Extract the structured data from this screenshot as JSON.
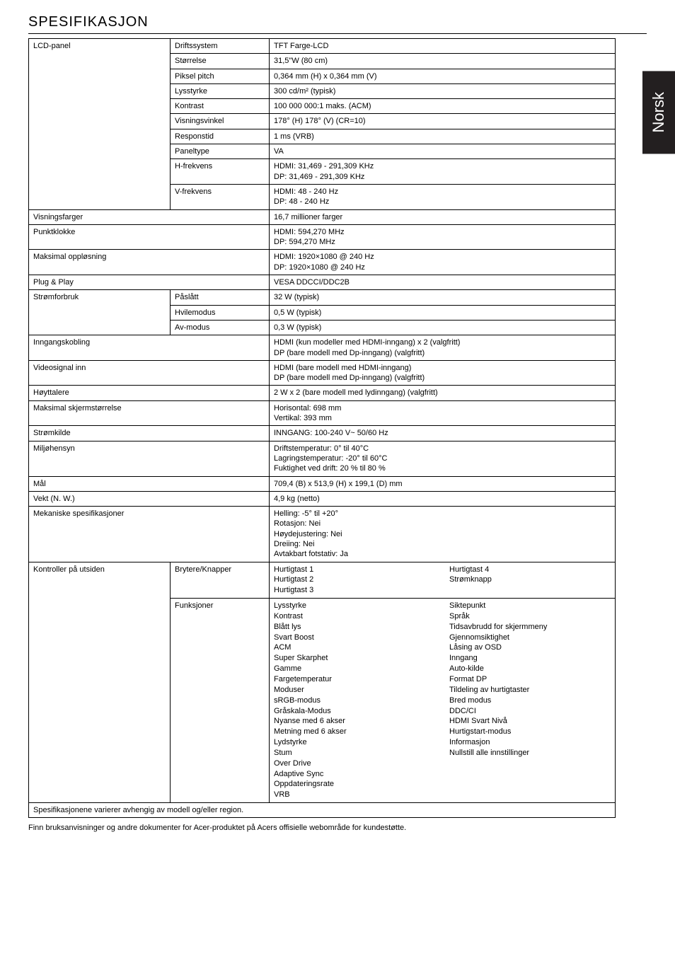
{
  "sideTab": "Norsk",
  "title": "SPESIFIKASJON",
  "rows": {
    "lcd": {
      "label": "LCD-panel",
      "drift": {
        "k": "Driftssystem",
        "v": "TFT Farge-LCD"
      },
      "size": {
        "k": "Størrelse",
        "v": "31,5\"W (80 cm)"
      },
      "pitch": {
        "k": "Piksel pitch",
        "v": "0,364 mm (H) x 0,364 mm (V)"
      },
      "lys": {
        "k": "Lysstyrke",
        "v": "300 cd/m² (typisk)"
      },
      "kontrast": {
        "k": "Kontrast",
        "v": "100 000 000:1 maks. (ACM)"
      },
      "vinkel": {
        "k": "Visningsvinkel",
        "v": "178° (H) 178° (V) (CR=10)"
      },
      "respons": {
        "k": "Responstid",
        "v": "1 ms (VRB)"
      },
      "paneltype": {
        "k": "Paneltype",
        "v": "VA"
      },
      "hfrek": {
        "k": "H-frekvens",
        "v": "HDMI: 31,469 - 291,309 KHz\nDP: 31,469 - 291,309 KHz"
      },
      "vfrek": {
        "k": "V-frekvens",
        "v": "HDMI: 48 - 240 Hz\nDP: 48 - 240 Hz"
      }
    },
    "visningsfarger": {
      "k": "Visningsfarger",
      "v": "16,7 millioner farger"
    },
    "punktklokke": {
      "k": "Punktklokke",
      "v": "HDMI: 594,270 MHz\nDP: 594,270 MHz"
    },
    "maksres": {
      "k": "Maksimal oppløsning",
      "v": "HDMI: 1920×1080 @ 240 Hz\nDP: 1920×1080 @ 240 Hz"
    },
    "plugplay": {
      "k": "Plug & Play",
      "v": "VESA DDCCI/DDC2B"
    },
    "strom": {
      "label": "Strømforbruk",
      "paslatt": {
        "k": "Påslått",
        "v": "32 W (typisk)"
      },
      "hvile": {
        "k": "Hvilemodus",
        "v": "0,5 W (typisk)"
      },
      "av": {
        "k": "Av-modus",
        "v": "0,3 W (typisk)"
      }
    },
    "inngang": {
      "k": "Inngangskobling",
      "v": "HDMI (kun modeller med HDMI-inngang) x 2 (valgfritt)\nDP (bare modell med Dp-inngang) (valgfritt)"
    },
    "videosignal": {
      "k": "Videosignal inn",
      "v": "HDMI (bare modell med HDMI-inngang)\nDP (bare modell med Dp-inngang) (valgfritt)"
    },
    "hoyttalere": {
      "k": "Høyttalere",
      "v": "2 W x 2 (bare modell med lydinngang) (valgfritt)"
    },
    "maksskjerm": {
      "k": "Maksimal skjermstørrelse",
      "v": "Horisontal: 698 mm\nVertikal: 393 mm"
    },
    "stromkilde": {
      "k": "Strømkilde",
      "v": "INNGANG: 100-240 V~ 50/60 Hz"
    },
    "miljo": {
      "k": "Miljøhensyn",
      "v": "Driftstemperatur: 0° til 40°C\nLagringstemperatur: -20° til 60°C\nFuktighet ved drift: 20 % til 80 %"
    },
    "mal": {
      "k": "Mål",
      "v": "709,4 (B) x 513,9 (H) x 199,1 (D) mm"
    },
    "vekt": {
      "k": "Vekt (N. W.)",
      "v": "4,9 kg (netto)"
    },
    "mekanisk": {
      "k": "Mekaniske spesifikasjoner",
      "v": "Helling: -5° til +20°\nRotasjon: Nei\nHøydejustering: Nei\nDreiing: Nei\nAvtakbart fotstativ: Ja"
    },
    "kontroller": {
      "label": "Kontroller på utsiden",
      "brytere": {
        "k": "Brytere/Knapper",
        "left": [
          "Hurtigtast 1",
          "Hurtigtast 2",
          "Hurtigtast 3"
        ],
        "right": [
          "Hurtigtast 4",
          "Strømknapp"
        ]
      },
      "funksjoner": {
        "k": "Funksjoner",
        "left": [
          "Lysstyrke",
          "Kontrast",
          "Blått lys",
          "Svart Boost",
          "ACM",
          "Super Skarphet",
          "Gamme",
          "Fargetemperatur",
          "Moduser",
          "sRGB-modus",
          "Gråskala-Modus",
          "Nyanse med 6 akser",
          "Metning med 6 akser",
          "Lydstyrke",
          "Stum",
          "Over Drive",
          "Adaptive Sync",
          "Oppdateringsrate",
          "VRB"
        ],
        "right": [
          "Siktepunkt",
          "Språk",
          "Tidsavbrudd for skjermmeny",
          "Gjennomsiktighet",
          "Låsing av OSD",
          "Inngang",
          "Auto-kilde",
          "Format DP",
          "Tildeling av hurtigtaster",
          "Bred modus",
          "DDC/CI",
          "HDMI Svart Nivå",
          "Hurtigstart-modus",
          "Informasjon",
          "Nullstill alle innstillinger"
        ]
      }
    },
    "specnote": "Spesifikasjonene varierer avhengig av modell og/eller region."
  },
  "footnote": "Finn bruksanvisninger og andre dokumenter for Acer-produktet på Acers offisielle webområde for kundestøtte."
}
